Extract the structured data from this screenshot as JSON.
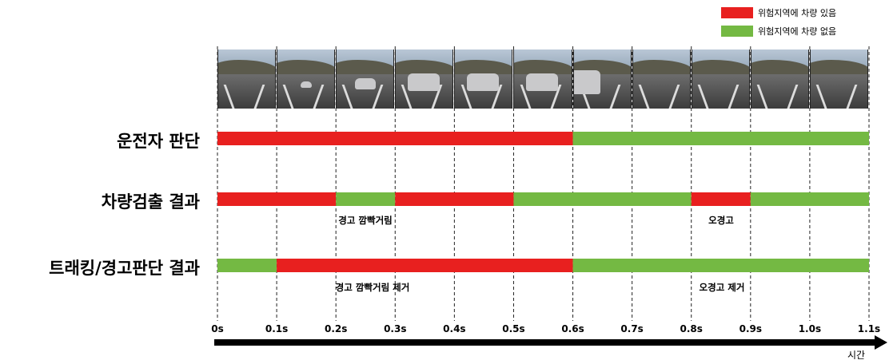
{
  "legend": {
    "items": [
      {
        "label": "위험지역에 차량 있음",
        "color": "#e8201f"
      },
      {
        "label": "위험지역에 차량 없음",
        "color": "#74b943"
      }
    ]
  },
  "rows": {
    "driver": {
      "label": "운전자 판단"
    },
    "detection": {
      "label": "차량검출 결과"
    },
    "tracking": {
      "label": "트래킹/경고판단 결과"
    }
  },
  "annotations": {
    "detection_blink": "경고 깜빡거림",
    "detection_false": "오경고",
    "tracking_blink_removed": "경고 깜빡거림 제거",
    "tracking_false_removed": "오경고 제거"
  },
  "axis": {
    "xlabel": "시간",
    "ticks": [
      "0s",
      "0.1s",
      "0.2s",
      "0.3s",
      "0.4s",
      "0.5s",
      "0.6s",
      "0.7s",
      "0.8s",
      "0.9s",
      "1.0s",
      "1.1s"
    ]
  },
  "chart_data": {
    "type": "timeline",
    "x_unit": "s",
    "xlim": [
      0,
      1.1
    ],
    "colors": {
      "vehicle_present": "#e8201f",
      "vehicle_absent": "#74b943"
    },
    "series": [
      {
        "row": "운전자 판단",
        "segments": [
          {
            "start": 0.0,
            "end": 0.6,
            "state": "vehicle_present"
          },
          {
            "start": 0.6,
            "end": 1.1,
            "state": "vehicle_absent"
          }
        ]
      },
      {
        "row": "차량검출 결과",
        "segments": [
          {
            "start": 0.0,
            "end": 0.2,
            "state": "vehicle_present"
          },
          {
            "start": 0.2,
            "end": 0.3,
            "state": "vehicle_absent"
          },
          {
            "start": 0.3,
            "end": 0.5,
            "state": "vehicle_present"
          },
          {
            "start": 0.5,
            "end": 0.8,
            "state": "vehicle_absent"
          },
          {
            "start": 0.8,
            "end": 0.9,
            "state": "vehicle_present"
          },
          {
            "start": 0.9,
            "end": 1.1,
            "state": "vehicle_absent"
          }
        ]
      },
      {
        "row": "트래킹/경고판단 결과",
        "segments": [
          {
            "start": 0.0,
            "end": 0.1,
            "state": "vehicle_absent"
          },
          {
            "start": 0.1,
            "end": 0.6,
            "state": "vehicle_present"
          },
          {
            "start": 0.6,
            "end": 1.1,
            "state": "vehicle_absent"
          }
        ]
      }
    ],
    "frames": [
      {
        "car": "none"
      },
      {
        "car": "far"
      },
      {
        "car": "mid"
      },
      {
        "car": "near"
      },
      {
        "car": "near"
      },
      {
        "car": "near"
      },
      {
        "car": "passing"
      },
      {
        "car": "none"
      },
      {
        "car": "none"
      },
      {
        "car": "none"
      },
      {
        "car": "none"
      }
    ]
  }
}
